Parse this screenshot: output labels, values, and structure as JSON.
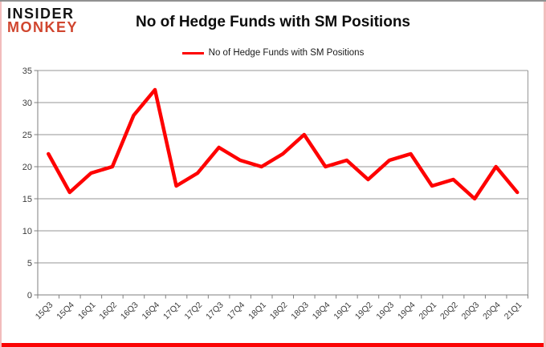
{
  "brand": {
    "line1": "INSIDER",
    "line2": "MONKEY"
  },
  "header": {
    "title": "No of Hedge Funds with SM Positions"
  },
  "legend": {
    "label": "No of Hedge Funds with SM Positions"
  },
  "colors": {
    "series_line": "#fe0000",
    "brand_black": "#141414",
    "brand_red": "#d0452e",
    "gridline": "#969696",
    "axis": "#7f7f7f",
    "tick_label": "#3d3d3d",
    "frame_bottom": "#fb0404",
    "frame_side_pink": "#f3bdbd",
    "frame_top_gray": "#919191"
  },
  "chart_data": {
    "type": "line",
    "title": "No of Hedge Funds with SM Positions",
    "categories": [
      "15Q3",
      "15Q4",
      "16Q1",
      "16Q2",
      "16Q3",
      "16Q4",
      "17Q1",
      "17Q2",
      "17Q3",
      "17Q4",
      "18Q1",
      "18Q2",
      "18Q3",
      "18Q4",
      "19Q1",
      "19Q2",
      "19Q3",
      "19Q4",
      "20Q1",
      "20Q2",
      "20Q3",
      "20Q4",
      "21Q1"
    ],
    "series": [
      {
        "name": "No of Hedge Funds with SM Positions",
        "color": "#fe0000",
        "values": [
          22,
          16,
          19,
          20,
          28,
          32,
          17,
          19,
          23,
          21,
          20,
          22,
          25,
          20,
          21,
          18,
          21,
          22,
          17,
          18,
          15,
          20,
          16
        ]
      }
    ],
    "xlabel": "",
    "ylabel": "",
    "ylim": [
      0,
      35
    ],
    "yticks": [
      0,
      5,
      10,
      15,
      20,
      25,
      30,
      35
    ],
    "grid": true,
    "legend_position": "top-center"
  }
}
